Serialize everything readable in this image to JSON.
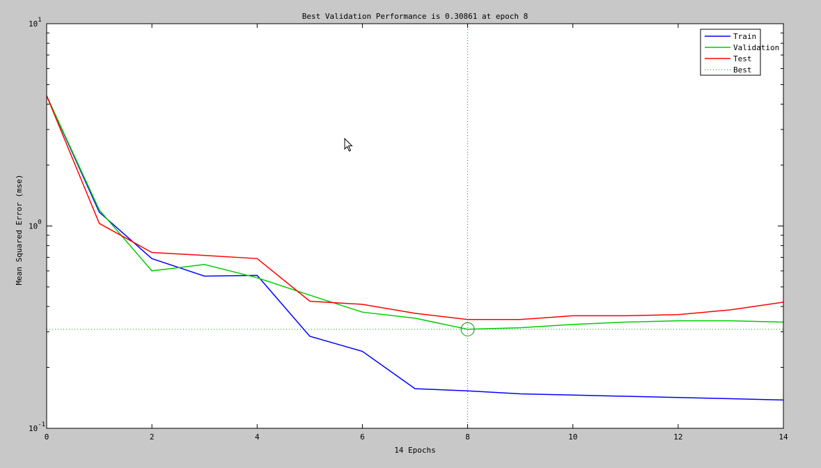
{
  "colors": {
    "figure_background": "#c8c8c8",
    "plot_background": "#ffffff",
    "train": "#0000ff",
    "validation": "#00cc00",
    "test": "#ff0000",
    "best": "#009900"
  },
  "cursor_icon": "arrow-cursor-icon",
  "chart_data": {
    "type": "line",
    "title": "Best Validation Performance is 0.30861 at epoch 8",
    "xlabel": "14 Epochs",
    "ylabel": "Mean Squared Error  (mse)",
    "xlim": [
      0,
      14
    ],
    "ylim": [
      0.1,
      10
    ],
    "yscale": "log",
    "x_ticks": [
      0,
      2,
      4,
      6,
      8,
      10,
      12,
      14
    ],
    "x_tick_labels": [
      "0",
      "2",
      "4",
      "6",
      "8",
      "10",
      "12",
      "14"
    ],
    "y_ticks": [
      {
        "value": 10,
        "base": "10",
        "exp": "1"
      },
      {
        "value": 1,
        "base": "10",
        "exp": "0"
      },
      {
        "value": 0.1,
        "base": "10",
        "exp": "-1"
      }
    ],
    "grid": false,
    "legend_position": "top-right",
    "x": [
      0,
      1,
      2,
      3,
      4,
      5,
      6,
      7,
      8,
      9,
      10,
      11,
      12,
      13,
      14
    ],
    "series": [
      {
        "name": "Train",
        "color": "#0000ff",
        "values": [
          4.4,
          1.17,
          0.69,
          0.565,
          0.57,
          0.285,
          0.24,
          0.157,
          0.153,
          0.148,
          0.146,
          0.144,
          0.142,
          0.14,
          0.138
        ]
      },
      {
        "name": "Validation",
        "color": "#00cc00",
        "values": [
          4.4,
          1.2,
          0.6,
          0.645,
          0.555,
          0.455,
          0.375,
          0.35,
          0.3086,
          0.314,
          0.326,
          0.335,
          0.34,
          0.34,
          0.335
        ]
      },
      {
        "name": "Test",
        "color": "#ff0000",
        "values": [
          4.4,
          1.03,
          0.74,
          0.715,
          0.69,
          0.425,
          0.41,
          0.37,
          0.345,
          0.345,
          0.36,
          0.36,
          0.365,
          0.385,
          0.42
        ]
      }
    ],
    "best": {
      "name": "Best",
      "epoch": 8,
      "value": 0.30861,
      "color": "#009900"
    }
  }
}
